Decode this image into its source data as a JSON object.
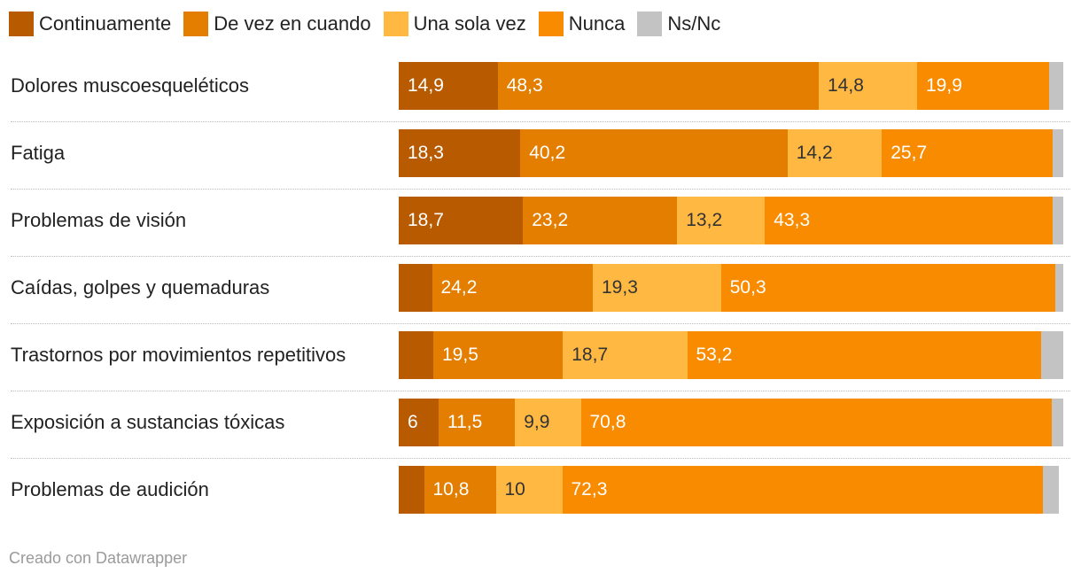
{
  "chart_data": {
    "type": "bar",
    "orientation": "horizontal",
    "stacked": true,
    "categories": [
      "Dolores muscoesqueléticos",
      "Fatiga",
      "Problemas de visión",
      "Caídas, golpes y quemaduras",
      "Trastornos por movimientos repetitivos",
      "Exposición a sustancias tóxicas",
      "Problemas de audición"
    ],
    "series": [
      {
        "name": "Continuamente",
        "color": "#b85a00",
        "text_color": "#ffffff",
        "values": [
          14.9,
          18.3,
          18.7,
          5.0,
          5.2,
          6,
          3.8
        ],
        "labels": [
          "14,9",
          "18,3",
          "18,7",
          "",
          "",
          "6",
          ""
        ]
      },
      {
        "name": "De vez en cuando",
        "color": "#e37e00",
        "text_color": "#ffffff",
        "values": [
          48.3,
          40.2,
          23.2,
          24.2,
          19.5,
          11.5,
          10.8
        ],
        "labels": [
          "48,3",
          "40,2",
          "23,2",
          "24,2",
          "19,5",
          "11,5",
          "10,8"
        ]
      },
      {
        "name": "Una sola vez",
        "color": "#ffb842",
        "text_color": "#333333",
        "values": [
          14.8,
          14.2,
          13.2,
          19.3,
          18.7,
          9.9,
          10
        ],
        "labels": [
          "14,8",
          "14,2",
          "13,2",
          "19,3",
          "18,7",
          "9,9",
          "10"
        ]
      },
      {
        "name": "Nunca",
        "color": "#f88b00",
        "text_color": "#ffffff",
        "values": [
          19.9,
          25.7,
          43.3,
          50.3,
          53.2,
          70.8,
          72.3
        ],
        "labels": [
          "19,9",
          "25,7",
          "43,3",
          "50,3",
          "53,2",
          "70,8",
          "72,3"
        ]
      },
      {
        "name": "Ns/Nc",
        "color": "#c3c3c3",
        "text_color": "#333333",
        "values": [
          2.1,
          1.6,
          1.6,
          1.2,
          3.4,
          1.8,
          2.4
        ],
        "labels": [
          "",
          "",
          "",
          "",
          "",
          "",
          ""
        ]
      }
    ],
    "xlim": [
      0,
      100
    ]
  },
  "footer": {
    "credit": "Creado con Datawrapper"
  }
}
